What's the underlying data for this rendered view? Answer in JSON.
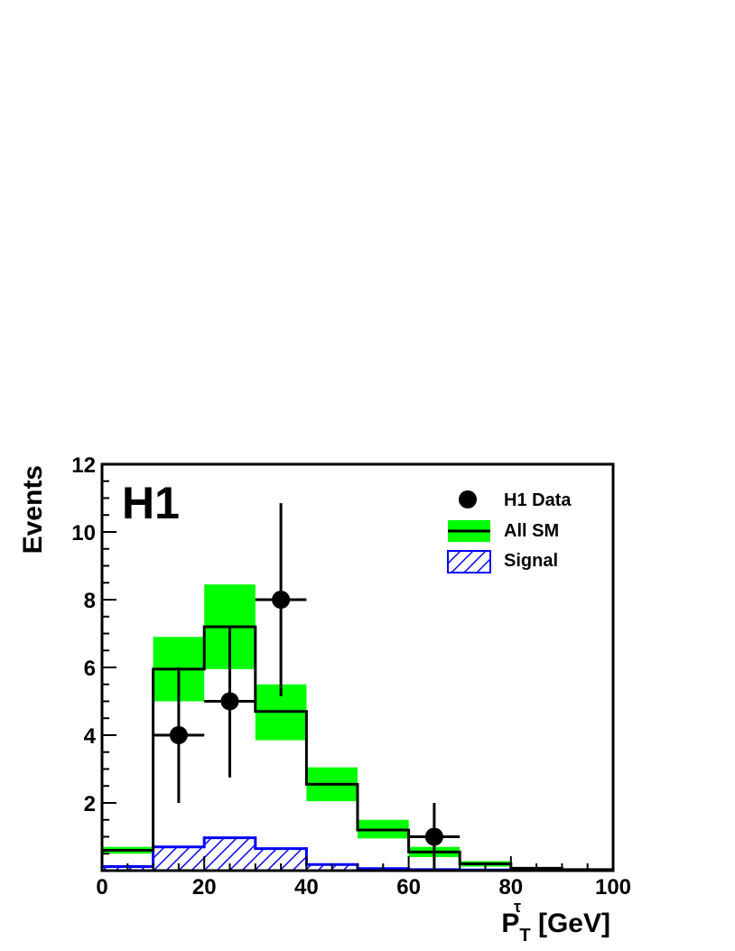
{
  "colors": {
    "sm_band": "#00ff00",
    "sm_line": "#000000",
    "signal": "#0000ff",
    "data": "#000000"
  },
  "chart_data": {
    "type": "histogram",
    "experiment_label": "H1",
    "xlabel": {
      "main": "P",
      "sup": "τ",
      "sub": "T",
      "unit": " [GeV]"
    },
    "ylabel": "Events",
    "xlim": [
      0,
      100
    ],
    "ylim": [
      0,
      12
    ],
    "x_ticks": [
      0,
      20,
      40,
      60,
      80,
      100
    ],
    "y_ticks": [
      2,
      4,
      6,
      8,
      10,
      12
    ],
    "y_tick_labels": [
      "2",
      "4",
      "6",
      "8",
      "10",
      "12"
    ],
    "x_tick_labels": [
      "0",
      "20",
      "40",
      "60",
      "80",
      "100"
    ],
    "bin_edges": [
      0,
      10,
      20,
      30,
      40,
      50,
      60,
      70,
      80,
      90,
      100
    ],
    "legend": {
      "placement": "top-right",
      "entries": [
        {
          "label": "H1 Data",
          "style": "marker"
        },
        {
          "label": "All SM",
          "style": "band"
        },
        {
          "label": "Signal",
          "style": "hatched"
        }
      ]
    },
    "all_sm": {
      "values": [
        0.6,
        5.95,
        7.2,
        4.7,
        2.55,
        1.2,
        0.55,
        0.2,
        0.07,
        0.03
      ],
      "band_low": [
        0.5,
        5.0,
        5.95,
        3.85,
        2.05,
        0.95,
        0.4,
        0.12,
        0.04,
        0.01
      ],
      "band_high": [
        0.7,
        6.9,
        8.45,
        5.5,
        3.05,
        1.5,
        0.7,
        0.28,
        0.1,
        0.05
      ]
    },
    "signal": {
      "values": [
        0.12,
        0.7,
        0.97,
        0.65,
        0.18,
        0.06,
        0.03,
        0.02,
        0.01,
        0.01
      ]
    },
    "h1_data": {
      "x": [
        15,
        25,
        35,
        65
      ],
      "y": [
        4,
        5,
        8,
        1
      ],
      "xerr": 5,
      "yerr_low": [
        2.0,
        2.25,
        2.85,
        1.0
      ],
      "yerr_high": [
        2.0,
        2.2,
        2.85,
        1.0
      ]
    }
  }
}
